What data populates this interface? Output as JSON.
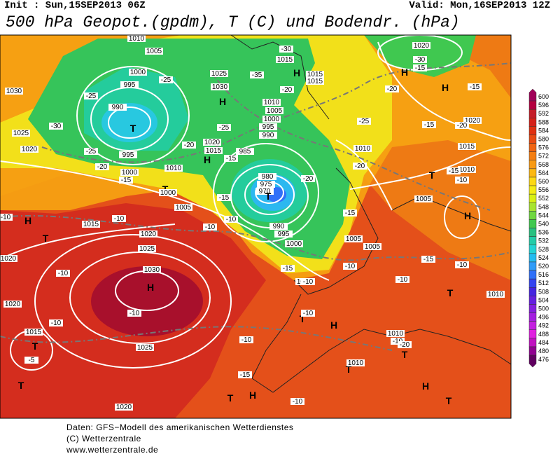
{
  "header": {
    "init": "Init : Sun,15SEP2013 06Z",
    "valid": "Valid: Mon,16SEP2013 12Z",
    "title": "500 hPa Geopot.(gpdm), T (C) und Bodendr. (hPa)"
  },
  "map_labels": [
    "1010",
    "1005",
    "1000",
    "995",
    "990",
    "T",
    "995",
    "1000",
    "1030",
    "1025",
    "1020",
    "H",
    "1030",
    "1025",
    "1020",
    "1015",
    "H",
    "985",
    "980",
    "975",
    "970",
    "T",
    "990",
    "995",
    "1000",
    "1005",
    "1010",
    "1005",
    "T",
    "H",
    "H",
    "1030",
    "1025",
    "1020",
    "1020",
    "1020",
    "1015",
    "T",
    "1025",
    "1020",
    "T",
    "H",
    "T",
    "H",
    "1020",
    "H",
    "1020",
    "1015",
    "1010",
    "H",
    "T",
    "1010",
    "H",
    "T",
    "T",
    "1010",
    "1010",
    "T",
    "H",
    "T",
    "T",
    "1010",
    "H",
    "1015",
    "1015",
    "1015",
    "1010",
    "1005",
    "1000",
    "995",
    "990",
    "T",
    "1000",
    "1005",
    "1015",
    "1010",
    "1005"
  ],
  "temperature_labels": [
    "-25",
    "-25",
    "-30",
    "-35",
    "-30",
    "-30",
    "-20",
    "-25",
    "-20",
    "-20",
    "-15",
    "-25",
    "-15",
    "-20",
    "-15",
    "-10",
    "-10",
    "-10",
    "-15",
    "-20",
    "-15",
    "-20",
    "-15",
    "-15",
    "-10",
    "-10",
    "-10",
    "-10",
    "-15",
    "-10",
    "-10",
    "-5",
    "-10",
    "-10",
    "-15",
    "-10",
    "-10",
    "-20",
    "-25",
    "-20",
    "-15",
    "-15",
    "-10",
    "-10",
    "-10"
  ],
  "colorbar": {
    "labels": [
      600,
      596,
      592,
      588,
      584,
      580,
      576,
      572,
      568,
      564,
      560,
      556,
      552,
      548,
      544,
      540,
      536,
      532,
      528,
      524,
      520,
      516,
      512,
      508,
      504,
      500,
      496,
      492,
      488,
      484,
      480,
      476
    ],
    "colors": [
      "#a00058",
      "#b40040",
      "#c41c28",
      "#d42018",
      "#e03010",
      "#e84a12",
      "#f06412",
      "#f47e12",
      "#f89a12",
      "#fcb812",
      "#fcd814",
      "#f4ec14",
      "#d8f014",
      "#a8e430",
      "#70d840",
      "#40c850",
      "#28c080",
      "#24cca8",
      "#24d4d4",
      "#24bcf0",
      "#309cf8",
      "#3070f8",
      "#3444f0",
      "#4424e0",
      "#6420e0",
      "#8420e0",
      "#a420e0",
      "#c420e0",
      "#e020e0",
      "#c010c0",
      "#900090",
      "#600060"
    ]
  },
  "footer": [
    "Daten: GFS−Modell des amerikanischen Wetterdienstes",
    "(C) Wetterzentrale",
    "www.wetterzentrale.de"
  ]
}
